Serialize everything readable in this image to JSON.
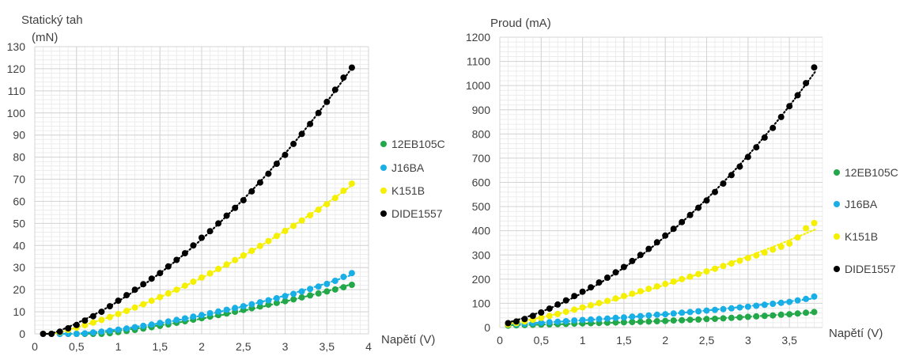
{
  "charts": [
    {
      "ylabel_lines": [
        "Statický tah",
        "(mN)"
      ],
      "xlabel": "Napětí (V)",
      "x_ticks": [
        "0",
        "0,5",
        "1",
        "1,5",
        "2",
        "2,5",
        "3",
        "3,5",
        "4"
      ],
      "y_ticks": [
        "0",
        "10",
        "20",
        "30",
        "40",
        "50",
        "60",
        "70",
        "80",
        "90",
        "100",
        "110",
        "120",
        "130"
      ]
    },
    {
      "ylabel_lines": [
        "Proud (mA)"
      ],
      "xlabel": "Napětí (V)",
      "x_ticks": [
        "0",
        "0,5",
        "1",
        "1,5",
        "2",
        "2,5",
        "3",
        "3,5"
      ],
      "y_ticks": [
        "0",
        "100",
        "200",
        "300",
        "400",
        "500",
        "600",
        "700",
        "800",
        "900",
        "1000",
        "1100",
        "1200"
      ]
    }
  ],
  "chart_data": [
    {
      "type": "scatter",
      "xlabel": "Napětí (V)",
      "ylabel": "Statický tah (mN)",
      "xlim": [
        0,
        4
      ],
      "ylim": [
        0,
        130
      ],
      "grid": true,
      "legend_position": "right",
      "trendlines": "dotted",
      "series": [
        {
          "name": "12EB105C",
          "color": "#22a849",
          "x": [
            0.3,
            0.4,
            0.5,
            0.6,
            0.7,
            0.8,
            0.9,
            1.0,
            1.1,
            1.2,
            1.3,
            1.4,
            1.5,
            1.6,
            1.7,
            1.8,
            1.9,
            2.0,
            2.1,
            2.2,
            2.3,
            2.4,
            2.5,
            2.6,
            2.7,
            2.8,
            2.9,
            3.0,
            3.1,
            3.2,
            3.3,
            3.4,
            3.5,
            3.6,
            3.7,
            3.8
          ],
          "y": [
            0,
            0,
            0,
            0,
            0,
            0,
            0.3,
            0.8,
            1.3,
            1.8,
            2.4,
            3.0,
            3.6,
            4.3,
            5.0,
            5.7,
            6.4,
            7.1,
            7.8,
            8.5,
            9.2,
            10.0,
            10.8,
            11.6,
            12.4,
            13.2,
            14.0,
            14.8,
            15.6,
            16.5,
            17.4,
            18.3,
            19.2,
            20.1,
            21.1,
            22.2
          ]
        },
        {
          "name": "J16BA",
          "color": "#18aee6",
          "x": [
            0.3,
            0.4,
            0.5,
            0.6,
            0.7,
            0.8,
            0.9,
            1.0,
            1.1,
            1.2,
            1.3,
            1.4,
            1.5,
            1.6,
            1.7,
            1.8,
            1.9,
            2.0,
            2.1,
            2.2,
            2.3,
            2.4,
            2.5,
            2.6,
            2.7,
            2.8,
            2.9,
            3.0,
            3.1,
            3.2,
            3.3,
            3.4,
            3.5,
            3.6,
            3.7,
            3.8
          ],
          "y": [
            0,
            0,
            0,
            0.2,
            0.6,
            1.0,
            1.4,
            1.9,
            2.4,
            3.0,
            3.6,
            4.2,
            4.9,
            5.6,
            6.3,
            7.0,
            7.8,
            8.5,
            9.3,
            10.1,
            10.9,
            11.7,
            12.5,
            13.4,
            14.3,
            15.2,
            16.1,
            17.1,
            18.1,
            19.2,
            20.3,
            21.4,
            22.6,
            24.0,
            25.8,
            27.5
          ]
        },
        {
          "name": "K151B",
          "color": "#f5f000",
          "x": [
            0.2,
            0.3,
            0.4,
            0.5,
            0.6,
            0.7,
            0.8,
            0.9,
            1.0,
            1.1,
            1.2,
            1.3,
            1.4,
            1.5,
            1.6,
            1.7,
            1.8,
            1.9,
            2.0,
            2.1,
            2.2,
            2.3,
            2.4,
            2.5,
            2.6,
            2.7,
            2.8,
            2.9,
            3.0,
            3.1,
            3.2,
            3.3,
            3.4,
            3.5,
            3.6,
            3.7,
            3.8
          ],
          "y": [
            0,
            0.8,
            1.8,
            2.8,
            3.9,
            5.1,
            6.3,
            7.6,
            9.0,
            10.4,
            11.9,
            13.4,
            15.0,
            16.6,
            18.3,
            20.0,
            21.8,
            23.6,
            25.5,
            27.4,
            29.4,
            31.4,
            33.4,
            35.5,
            37.6,
            39.8,
            42.0,
            44.3,
            46.6,
            48.9,
            51.3,
            53.7,
            56.2,
            58.7,
            61.5,
            64.8,
            68.0
          ]
        },
        {
          "name": "DIDE1557",
          "color": "#000000",
          "x": [
            0.1,
            0.2,
            0.3,
            0.4,
            0.5,
            0.6,
            0.7,
            0.8,
            0.9,
            1.0,
            1.1,
            1.2,
            1.3,
            1.4,
            1.5,
            1.6,
            1.7,
            1.8,
            1.9,
            2.0,
            2.1,
            2.2,
            2.3,
            2.4,
            2.5,
            2.6,
            2.7,
            2.8,
            2.9,
            3.0,
            3.1,
            3.2,
            3.3,
            3.4,
            3.5,
            3.6,
            3.7,
            3.8
          ],
          "y": [
            0,
            0,
            1,
            2.5,
            4,
            6,
            8,
            10,
            12.5,
            15,
            17.5,
            20,
            22.5,
            25,
            27.5,
            30.5,
            33.5,
            36.5,
            40,
            43.5,
            46.5,
            50,
            53.5,
            57,
            60.5,
            64.5,
            68.5,
            72.5,
            77,
            81,
            86,
            90.5,
            95,
            100,
            105,
            110.5,
            116,
            120.5
          ]
        }
      ]
    },
    {
      "type": "scatter",
      "xlabel": "Napětí (V)",
      "ylabel": "Proud (mA)",
      "xlim": [
        0,
        3.8
      ],
      "ylim": [
        0,
        1200
      ],
      "grid": true,
      "legend_position": "right",
      "trendlines": "dotted",
      "series": [
        {
          "name": "12EB105C",
          "color": "#22a849",
          "x": [
            0.1,
            0.2,
            0.3,
            0.4,
            0.5,
            0.6,
            0.7,
            0.8,
            0.9,
            1.0,
            1.1,
            1.2,
            1.3,
            1.4,
            1.5,
            1.6,
            1.7,
            1.8,
            1.9,
            2.0,
            2.1,
            2.2,
            2.3,
            2.4,
            2.5,
            2.6,
            2.7,
            2.8,
            2.9,
            3.0,
            3.1,
            3.2,
            3.3,
            3.4,
            3.5,
            3.6,
            3.7,
            3.8
          ],
          "y": [
            8,
            9,
            10,
            11,
            12,
            13,
            14,
            15,
            16,
            17,
            18,
            19,
            20,
            21,
            22,
            23,
            24,
            25,
            26,
            27,
            29,
            30,
            32,
            33,
            35,
            36,
            38,
            40,
            42,
            44,
            46,
            48,
            50,
            53,
            55,
            58,
            61,
            64
          ]
        },
        {
          "name": "J16BA",
          "color": "#18aee6",
          "x": [
            0.1,
            0.2,
            0.3,
            0.4,
            0.5,
            0.6,
            0.7,
            0.8,
            0.9,
            1.0,
            1.1,
            1.2,
            1.3,
            1.4,
            1.5,
            1.6,
            1.7,
            1.8,
            1.9,
            2.0,
            2.1,
            2.2,
            2.3,
            2.4,
            2.5,
            2.6,
            2.7,
            2.8,
            2.9,
            3.0,
            3.1,
            3.2,
            3.3,
            3.4,
            3.5,
            3.6,
            3.7,
            3.8
          ],
          "y": [
            12,
            14,
            16,
            18,
            20,
            22,
            24,
            26,
            29,
            31,
            33,
            35,
            37,
            40,
            42,
            45,
            47,
            50,
            53,
            55,
            58,
            61,
            64,
            67,
            70,
            73,
            76,
            79,
            83,
            86,
            90,
            94,
            98,
            102,
            106,
            112,
            118,
            128
          ]
        },
        {
          "name": "K151B",
          "color": "#f5f000",
          "x": [
            0.1,
            0.2,
            0.3,
            0.4,
            0.5,
            0.6,
            0.7,
            0.8,
            0.9,
            1.0,
            1.1,
            1.2,
            1.3,
            1.4,
            1.5,
            1.6,
            1.7,
            1.8,
            1.9,
            2.0,
            2.1,
            2.2,
            2.3,
            2.4,
            2.5,
            2.6,
            2.7,
            2.8,
            2.9,
            3.0,
            3.1,
            3.2,
            3.3,
            3.4,
            3.5,
            3.6,
            3.7,
            3.8
          ],
          "y": [
            12,
            18,
            25,
            32,
            40,
            48,
            56,
            65,
            74,
            83,
            92,
            101,
            110,
            120,
            130,
            140,
            150,
            160,
            170,
            180,
            190,
            200,
            210,
            221,
            232,
            243,
            254,
            265,
            276,
            287,
            298,
            310,
            322,
            334,
            347,
            372,
            410,
            432
          ]
        },
        {
          "name": "DIDE1557",
          "color": "#000000",
          "x": [
            0.1,
            0.2,
            0.3,
            0.4,
            0.5,
            0.6,
            0.7,
            0.8,
            0.9,
            1.0,
            1.1,
            1.2,
            1.3,
            1.4,
            1.5,
            1.6,
            1.7,
            1.8,
            1.9,
            2.0,
            2.1,
            2.2,
            2.3,
            2.4,
            2.5,
            2.6,
            2.7,
            2.8,
            2.9,
            3.0,
            3.1,
            3.2,
            3.3,
            3.4,
            3.5,
            3.6,
            3.7,
            3.8
          ],
          "y": [
            18,
            25,
            35,
            48,
            62,
            78,
            95,
            112,
            130,
            148,
            166,
            186,
            206,
            228,
            250,
            275,
            300,
            325,
            352,
            380,
            408,
            436,
            465,
            495,
            525,
            560,
            595,
            630,
            665,
            705,
            745,
            785,
            825,
            870,
            915,
            960,
            1010,
            1075
          ]
        }
      ]
    }
  ]
}
